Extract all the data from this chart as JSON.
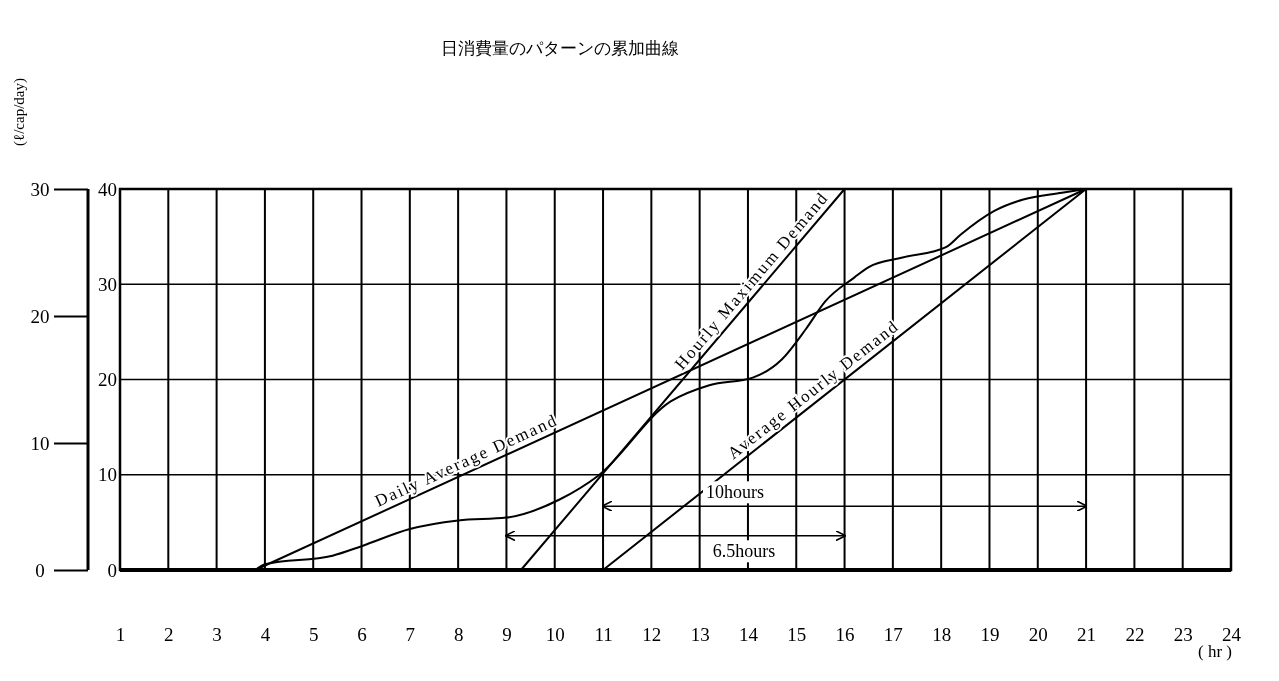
{
  "chart_data": {
    "type": "line",
    "title": "日消費量のパターンの累加曲線",
    "xlabel": "( hr )",
    "y2label": "(ℓ/cap/day)",
    "xlim": [
      1,
      24
    ],
    "xticks": [
      1,
      2,
      3,
      4,
      5,
      6,
      7,
      8,
      9,
      10,
      11,
      12,
      13,
      14,
      15,
      16,
      17,
      18,
      19,
      20,
      21,
      22,
      23,
      24
    ],
    "ylim": [
      0,
      40
    ],
    "yticks": [
      0,
      10,
      20,
      30,
      40
    ],
    "y2lim": [
      0,
      30
    ],
    "y2ticks": [
      0,
      10,
      20,
      30
    ],
    "grid": true,
    "annotations": [
      "10hours",
      "6.5hours"
    ],
    "series": [
      {
        "color": "#000000",
        "x": [
          3.8,
          4,
          5.4,
          6,
          7,
          8,
          9,
          10.1,
          10.9,
          12.4,
          13.2,
          14.1,
          14.7,
          15.2,
          15.6,
          16.2,
          16.5,
          17.2,
          18.1,
          18.4,
          19.1,
          19.7,
          20.5,
          21
        ],
        "values": [
          0,
          0.6,
          1.5,
          2.5,
          4.3,
          5.2,
          5.5,
          7.4,
          9.9,
          17.7,
          19.4,
          20.2,
          22.1,
          25.3,
          28.2,
          30.7,
          31.8,
          32.8,
          33.9,
          35.2,
          37.7,
          38.9,
          39.6,
          40
        ]
      },
      {
        "name": "Daily Average Demand",
        "color": "#000000",
        "x": [
          3.8,
          21
        ],
        "values": [
          0,
          40
        ]
      },
      {
        "name": "Hourly Maximum Demand",
        "color": "#000000",
        "x": [
          9.3,
          16
        ],
        "values": [
          0,
          40
        ]
      },
      {
        "name": "Average Hourly Demand",
        "color": "#000000",
        "x": [
          11,
          21
        ],
        "values": [
          0,
          40
        ]
      },
      {
        "color": "#000000",
        "x": [
          11,
          21
        ],
        "values": [
          6.7,
          6.7
        ]
      },
      {
        "color": "#000000",
        "x": [
          9,
          16
        ],
        "values": [
          3.6,
          3.6
        ]
      }
    ]
  }
}
